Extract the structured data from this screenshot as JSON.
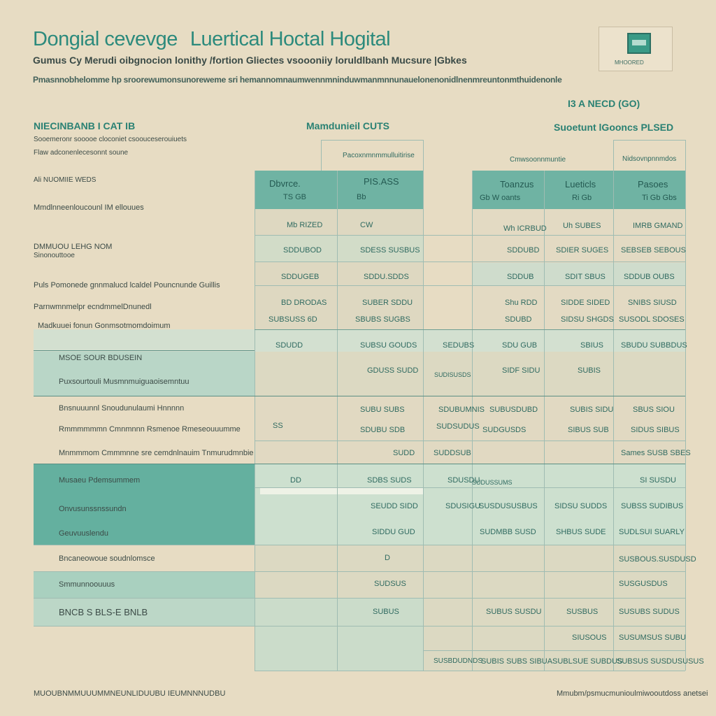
{
  "header": {
    "title_left": "Dongial cevevge",
    "title_right": "Luertical Hoctal Hogital",
    "subtitle": "Gumus Cy Merudi oibgnocion lonithy /fortion Gliectes vsoooniiy loruldlbanh Mucsure |Gbkes",
    "description": "Pmasnnobhelomme hp sroorewumonsunoreweme sri hemannomnaumwennmninduwmanmnnunauelonenonidlnenmreuntonmthuidenonle",
    "logo_caption": "MHOORED"
  },
  "top_right_label": "I3 A NECD (GO)",
  "section_labels": {
    "left": "NIECINBANB I CAT IB",
    "middle": "Mamdunieil CUTS",
    "right": "Suoetunt lGooncs PLSED"
  },
  "left_notes": {
    "note1": "Sooemeronr sooooe cloconiet csoouceserouiuets",
    "note2": "Flaw adconenlecesonnt soune",
    "note3": "Ali NUOMIIE WEDS"
  },
  "column_headers": {
    "group_a": "Pacoxnmnmmulluitirise",
    "group_b": "Cmwsoonnmuntie",
    "group_c": "Nidsovnpnnmdos",
    "h1": "Dbvrce.",
    "h1b": "TS GB",
    "h2": "PIS.ASS",
    "h2b": "Bb",
    "h3": "Toanzus",
    "h3b": "Gb W oants",
    "h4": "Lueticls",
    "h4b": "Ri Gb",
    "h5": "Pasoes",
    "h5b": "Ti Gb Gbs"
  },
  "rows": [
    {
      "label": "Mmdlnneenloucounl IM ellouues",
      "c1": "Mb RIZED",
      "c2": "CW",
      "c3": "",
      "c4": "Wh ICRBUD",
      "c5": "Uh SUBES",
      "c6": "IMRB GMAND"
    },
    {
      "label": "DMMUOU LEHG NOM",
      "label2": "Sinonouttooe",
      "c1": "SDDUBOD",
      "c2": "SDESS SUSBUS",
      "c3": "",
      "c4": "SDDUBD",
      "c5": "SDIER SUGES",
      "c6": "SEBSEB SEBOUS"
    },
    {
      "label": "Puls Pomonede gnnmalucd lcaldel Pouncnunde Guillis",
      "c1": "SDDUGEB",
      "c2": "SDDU.SDDS",
      "c3": "",
      "c4": "SDDUB",
      "c5": "SDIT SBUS",
      "c6": "SDDUB OUBS"
    },
    {
      "label": "Parnwmnmelpr ecndmmelDnunedl",
      "c1": "BD DRODAS",
      "c2": "SUBER SDDU",
      "c3": "",
      "c4": "Shu RDD",
      "c5": "SIDDE SIDED",
      "c6": "SNIBS SIUSD"
    },
    {
      "label": "Madkuuei fonun Gonmsotmomdoimum",
      "c1": "SUBSUSS 6D",
      "c2": "SBUBS SUGBS",
      "c3": "",
      "c4": "SDUBD",
      "c5": "SIDSU SHGDS",
      "c6": "SUSODL SDOSES"
    },
    {
      "label": "",
      "c1": "SDUDD",
      "c2": "SUBSU GOUDS",
      "c3": "SEDUBS",
      "c4": "SDU GUB",
      "c5": "SBIUS",
      "c6": "SBUDU SUBBDUS"
    },
    {
      "label": "MSOE SOUR BDUSEIN",
      "label2": "Puxsourtouli Musmnmuiguaoisemntuu",
      "c1": "",
      "c2": "GDUSS SUDD",
      "c3": "SUDISUSDS",
      "c4": "SIDF SIDU",
      "c5": "SUBIS",
      "c6": ""
    },
    {
      "label": "Bnsnuuunnl Snoudunulaumi Hnnnnn",
      "c1": "",
      "c2": "SUBU SUBS",
      "c3": "SDUBUMNIS",
      "c4": "SUBUSDUBD",
      "c5": "SUBIS SIDU",
      "c6": "SBUS SIOU"
    },
    {
      "label": "Rmmmmmmn Cmnmnnn Rsmenoe Rmeseouuumme",
      "c1": "SS",
      "c2": "SDUBU SDB",
      "c3": "SUDSUDUS",
      "c4": "SUDGUSDS",
      "c5": "SIBUS SUB",
      "c6": "SIDUS SIBUS"
    },
    {
      "label": "Mnmmmom Cmmmnne sre cemdnlnauim Tnmurudmnbie",
      "c1": "",
      "c2": "SUDD",
      "c3": "SUDDSUB",
      "c4": "",
      "c5": "",
      "c6": "Sames SUSB SBES"
    },
    {
      "label": "Musaeu Pdemsummem",
      "c1": "DD",
      "c2": "SDBS SUDS",
      "c3": "SDUSDU",
      "c4": "SUDUSSUMS",
      "c5": "",
      "c6": "SI SUSDU"
    },
    {
      "label": "Onvusunssnssundn",
      "c1": "",
      "c2": "SEUDD SIDD",
      "c3": "SDUSIGU",
      "c4": "SUSDUSUSBUS",
      "c5": "SIDSU SUDDS",
      "c6": "SUBSS SUDIBUS"
    },
    {
      "label": "Geuvuuslendu",
      "c1": "",
      "c2": "SIDDU GUD",
      "c3": "",
      "c4": "SUDMBB SUSD",
      "c5": "SHBUS SUDE",
      "c6": "SUDLSUI SUARLY"
    },
    {
      "label": "Bncaneowoue soudnlomsce",
      "c1": "",
      "c2": "D",
      "c3": "",
      "c4": "",
      "c5": "",
      "c6": "SUSBOUS.SUSDUSD"
    },
    {
      "label": "Smmunnoouuus",
      "c1": "",
      "c2": "SUDSUS",
      "c3": "",
      "c4": "",
      "c5": "",
      "c6": "SUSGUSDUS"
    },
    {
      "label": "BNCB S BLS-E BNLB",
      "c1": "",
      "c2": "SUBUS",
      "c3": "",
      "c4": "SUBUS SUSDU",
      "c5": "SUSBUS",
      "c6": "SUSUBS SUDUS"
    },
    {
      "label": "",
      "c1": "",
      "c2": "",
      "c3": "",
      "c4": "",
      "c5": "SIUSOUS",
      "c6": "SUSUMSUS SUBU"
    },
    {
      "label": "",
      "c1": "",
      "c2": "",
      "c3": "SUSBDUDNDS",
      "c4": "SUBIS SUBS SIBUA",
      "c5": "SUBLSUE SUBDUS",
      "c6": "SUBSUS SUSDUSUSUS"
    }
  ],
  "footer": {
    "left": "MUOUBNMMUUUMMNEUNLIDUUBU IEUMNNNUDBU",
    "right": "Mmubm/psmucmunioulmiwooutdoss anetsei"
  }
}
